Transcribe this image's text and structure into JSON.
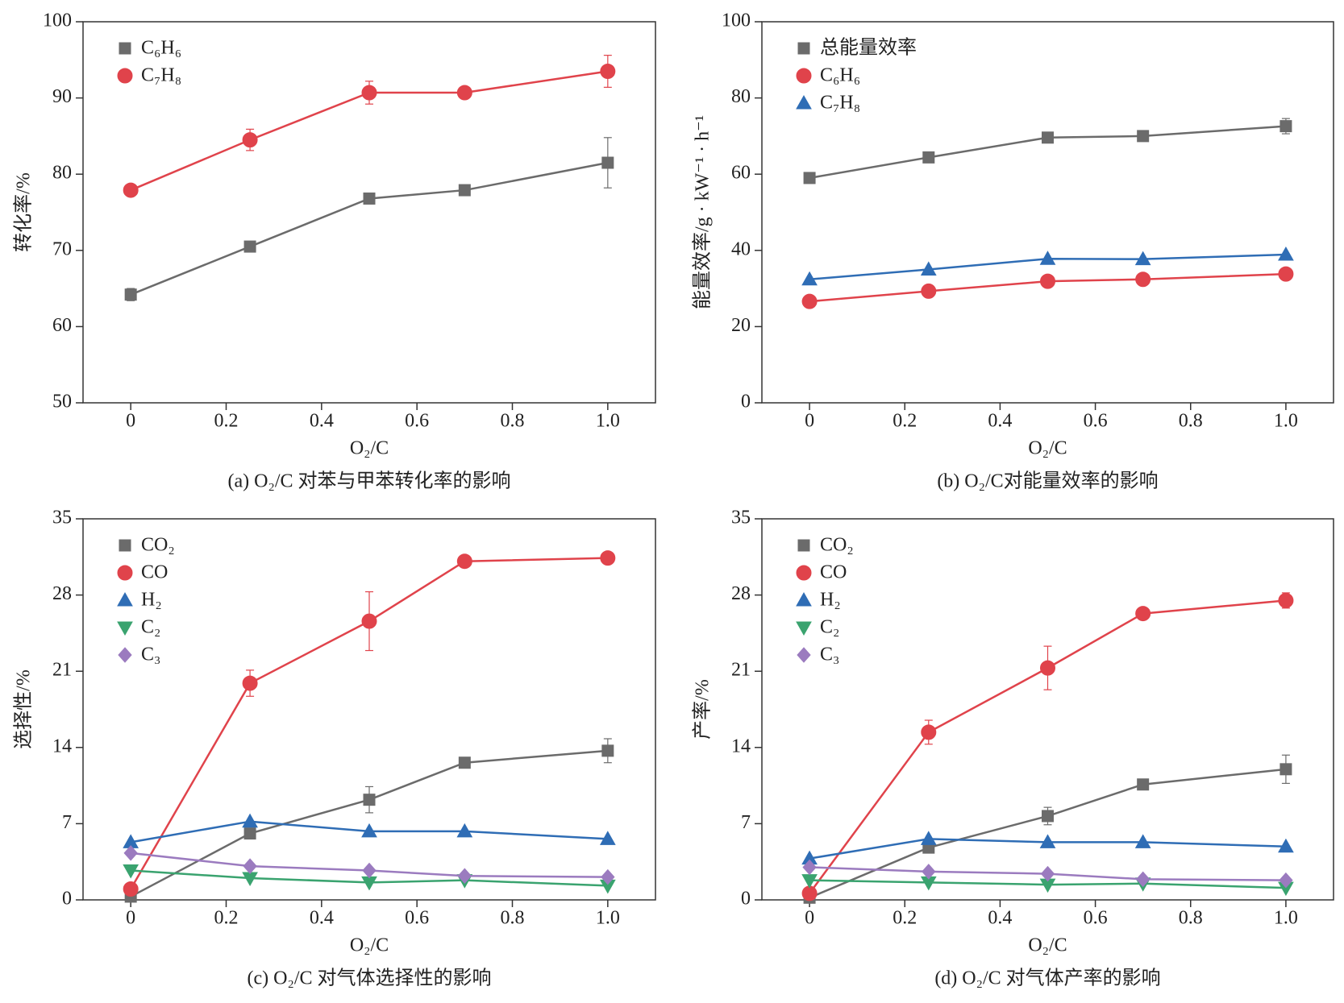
{
  "chart_data": [
    {
      "type": "line",
      "caption": "(a) O₂/C 对苯与甲苯转化率的影响",
      "xlabel": "O₂/C",
      "ylabel": "转化率/%",
      "x": [
        0,
        0.25,
        0.5,
        0.7,
        1.0
      ],
      "xlim": [
        -0.1,
        1.1
      ],
      "xticks": [
        0,
        0.2,
        0.4,
        0.6,
        0.8,
        {
          "value": 1,
          "label": "1.0"
        }
      ],
      "ylim": [
        50,
        100
      ],
      "yticks": [
        50,
        60,
        70,
        80,
        90,
        100
      ],
      "series": [
        {
          "name": "C₆H₆",
          "color": "#6b6b6b",
          "marker": "square",
          "values": [
            64.2,
            70.5,
            76.8,
            77.9,
            81.5
          ],
          "errors": [
            0.8,
            null,
            null,
            null,
            3.3
          ]
        },
        {
          "name": "C₇H₈",
          "color": "#e0434b",
          "marker": "circle",
          "values": [
            77.9,
            84.5,
            90.7,
            90.7,
            93.5
          ],
          "errors": [
            null,
            1.4,
            1.5,
            null,
            2.1
          ]
        }
      ]
    },
    {
      "type": "line",
      "caption": "(b) O₂/C对能量效率的影响",
      "xlabel": "O₂/C",
      "ylabel": "能量效率/g · kW⁻¹ · h⁻¹",
      "x": [
        0,
        0.25,
        0.5,
        0.7,
        1.0
      ],
      "xlim": [
        -0.1,
        1.1
      ],
      "xticks": [
        0,
        0.2,
        0.4,
        0.6,
        0.8,
        {
          "value": 1,
          "label": "1.0"
        }
      ],
      "ylim": [
        0,
        100
      ],
      "yticks": [
        0,
        20,
        40,
        60,
        80,
        100
      ],
      "series": [
        {
          "name": "总能量效率",
          "color": "#6b6b6b",
          "marker": "square",
          "values": [
            59,
            64.4,
            69.6,
            70,
            72.6
          ],
          "errors": [
            null,
            null,
            null,
            null,
            2
          ]
        },
        {
          "name": "C₆H₆",
          "color": "#e0434b",
          "marker": "circle",
          "values": [
            26.6,
            29.3,
            31.9,
            32.4,
            33.8
          ]
        },
        {
          "name": "C₇H₈",
          "color": "#2f6db5",
          "marker": "triangle",
          "values": [
            32.4,
            35,
            37.8,
            37.7,
            38.9
          ]
        }
      ]
    },
    {
      "type": "line",
      "caption": "(c) O₂/C 对气体选择性的影响",
      "xlabel": "O₂/C",
      "ylabel": "选择性/%",
      "x": [
        0,
        0.25,
        0.5,
        0.7,
        1.0
      ],
      "xlim": [
        -0.1,
        1.1
      ],
      "xticks": [
        0,
        0.2,
        0.4,
        0.6,
        0.8,
        {
          "value": 1,
          "label": "1.0"
        }
      ],
      "ylim": [
        0,
        35
      ],
      "yticks": [
        0,
        7,
        14,
        21,
        28,
        35
      ],
      "series": [
        {
          "name": "CO₂",
          "color": "#6b6b6b",
          "marker": "square",
          "values": [
            0.3,
            6.1,
            9.2,
            12.6,
            13.7
          ],
          "errors": [
            null,
            null,
            1.2,
            null,
            1.1
          ]
        },
        {
          "name": "CO",
          "color": "#e0434b",
          "marker": "circle",
          "values": [
            1.0,
            19.9,
            25.6,
            31.1,
            31.4
          ],
          "errors": [
            null,
            1.2,
            2.7,
            null,
            null
          ]
        },
        {
          "name": "H₂",
          "color": "#2f6db5",
          "marker": "triangle",
          "values": [
            5.3,
            7.2,
            6.3,
            6.3,
            5.6
          ]
        },
        {
          "name": "C₂",
          "color": "#3aa36f",
          "marker": "triangle-down",
          "values": [
            2.7,
            2.0,
            1.6,
            1.8,
            1.3
          ]
        },
        {
          "name": "C₃",
          "color": "#9b7bbf",
          "marker": "diamond",
          "values": [
            4.3,
            3.1,
            2.7,
            2.2,
            2.1
          ]
        }
      ]
    },
    {
      "type": "line",
      "caption": "(d) O₂/C 对气体产率的影响",
      "xlabel": "O₂/C",
      "ylabel": "产率/%",
      "x": [
        0,
        0.25,
        0.5,
        0.7,
        1.0
      ],
      "xlim": [
        -0.1,
        1.1
      ],
      "xticks": [
        0,
        0.2,
        0.4,
        0.6,
        0.8,
        {
          "value": 1,
          "label": "1.0"
        }
      ],
      "ylim": [
        0,
        35
      ],
      "yticks": [
        0,
        7,
        14,
        21,
        28,
        35
      ],
      "series": [
        {
          "name": "CO₂",
          "color": "#6b6b6b",
          "marker": "square",
          "values": [
            0.2,
            4.8,
            7.7,
            10.6,
            12.0
          ],
          "errors": [
            null,
            null,
            0.8,
            null,
            1.3
          ]
        },
        {
          "name": "CO",
          "color": "#e0434b",
          "marker": "circle",
          "values": [
            0.6,
            15.4,
            21.3,
            26.3,
            27.5
          ],
          "errors": [
            null,
            1.1,
            2.0,
            null,
            0.7
          ]
        },
        {
          "name": "H₂",
          "color": "#2f6db5",
          "marker": "triangle",
          "values": [
            3.8,
            5.6,
            5.3,
            5.3,
            4.9
          ]
        },
        {
          "name": "C₂",
          "color": "#3aa36f",
          "marker": "triangle-down",
          "values": [
            1.8,
            1.6,
            1.4,
            1.5,
            1.1
          ]
        },
        {
          "name": "C₃",
          "color": "#9b7bbf",
          "marker": "diamond",
          "values": [
            3.0,
            2.6,
            2.4,
            1.9,
            1.8
          ]
        }
      ]
    }
  ]
}
